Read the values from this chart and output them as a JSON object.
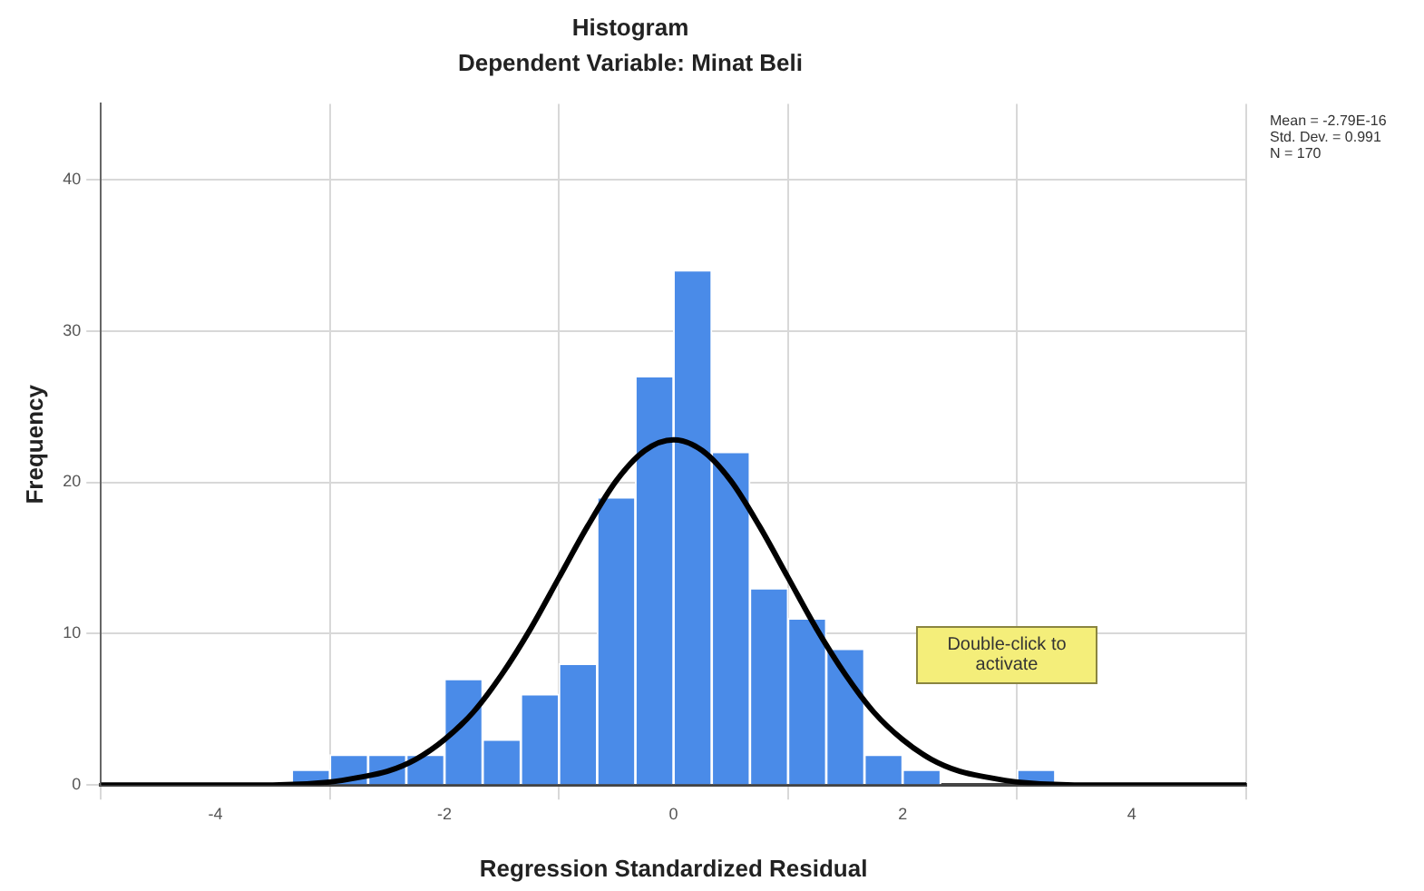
{
  "chart_data": {
    "type": "histogram",
    "title": "Histogram",
    "subtitle": "Dependent Variable: Minat Beli",
    "xlabel": "Regression Standardized Residual",
    "ylabel": "Frequency",
    "bins": [
      -3.333,
      -3,
      -2.667,
      -2.333,
      -2,
      -1.667,
      -1.333,
      -1,
      -0.667,
      -0.333,
      0,
      0.333,
      0.667,
      1,
      1.333,
      1.667,
      2,
      2.333,
      2.667,
      3,
      3.333
    ],
    "values": [
      1,
      2,
      2,
      2,
      7,
      3,
      6,
      8,
      19,
      27,
      34,
      22,
      13,
      11,
      9,
      2,
      1,
      0,
      0,
      1
    ],
    "color": "#4a8be8",
    "series": [
      {
        "type": "line",
        "color": "#000000",
        "marker": "none",
        "x": [
          -5,
          -4,
          -3.5,
          -3,
          -2.75,
          -2.5,
          -2.25,
          -2,
          -1.75,
          -1.5,
          -1.25,
          -1,
          -0.75,
          -0.5,
          -0.25,
          0,
          0.25,
          0.5,
          0.75,
          1,
          1.25,
          1.5,
          1.75,
          2,
          2.25,
          2.5,
          2.75,
          3,
          3.5,
          4,
          5
        ],
        "values": [
          0,
          0,
          0,
          0.2,
          0.5,
          0.9,
          1.7,
          3,
          4.8,
          7.3,
          10.3,
          13.7,
          17.1,
          20.1,
          22.1,
          22.8,
          22.1,
          20.1,
          17.1,
          13.7,
          10.3,
          7.3,
          4.8,
          3,
          1.7,
          0.9,
          0.5,
          0.2,
          0,
          0,
          0
        ]
      }
    ],
    "xlim": [
      -5,
      5
    ],
    "xticks": [
      -4,
      -2,
      0,
      2,
      4
    ],
    "ylim": [
      0,
      45
    ],
    "yticks": [
      0,
      10,
      20,
      30,
      40
    ],
    "grid": true,
    "annotations": [
      "Mean = -2.79E-16",
      "Std. Dev. = 0.991",
      "N = 170",
      "Double-click to activate"
    ]
  }
}
